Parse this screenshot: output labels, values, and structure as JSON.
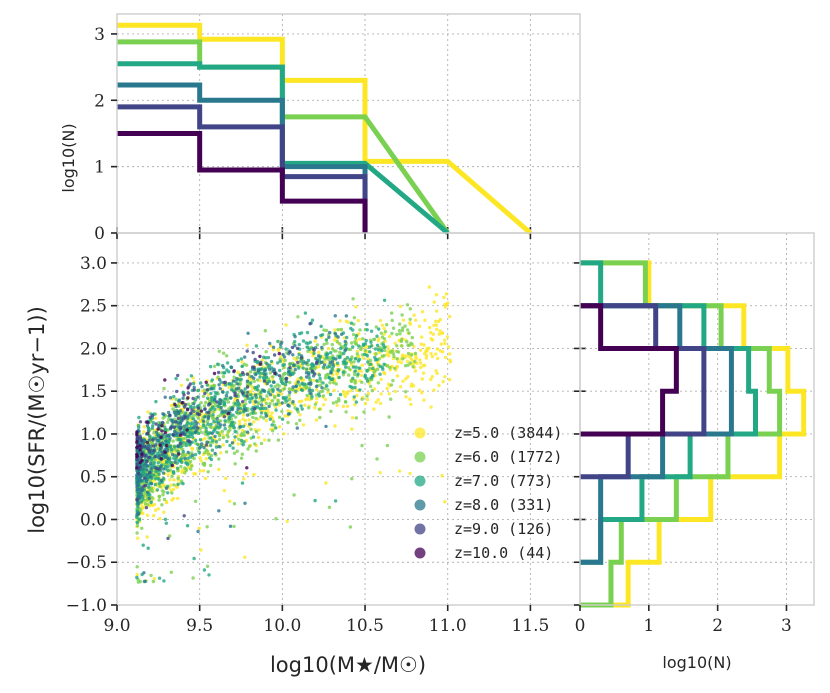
{
  "chart_data": {
    "type": "scatter",
    "title": "",
    "xlabel": "log10(M★/M☉)",
    "ylabel": "log10(SFR/(M☉yr−1))",
    "xlim": [
      9.0,
      11.8
    ],
    "ylim": [
      -1.0,
      3.35
    ],
    "x_ticks": [
      "9.0",
      "9.5",
      "10.0",
      "10.5",
      "11.0",
      "11.5"
    ],
    "y_ticks": [
      "−1.0",
      "−0.5",
      "0.0",
      "0.5",
      "1.0",
      "1.5",
      "2.0",
      "2.5",
      "3.0"
    ],
    "series": [
      {
        "name": "z=5.0 (3844)",
        "redshift": 5.0,
        "count": 3844,
        "color": "#fde725",
        "mass_hist": {
          "bins": [
            9.0,
            9.5,
            10.0,
            10.5,
            11.0,
            11.5
          ],
          "log10N": [
            3.13,
            2.92,
            2.3,
            1.08
          ]
        },
        "sfr_hist": {
          "bins": [
            -1.0,
            -0.5,
            0.0,
            0.5,
            1.0,
            1.5,
            2.0,
            2.5,
            3.0
          ],
          "log10N": [
            0.7,
            1.15,
            1.9,
            2.9,
            3.25,
            3.02,
            2.38,
            1.0
          ]
        }
      },
      {
        "name": "z=6.0 (1772)",
        "redshift": 6.0,
        "count": 1772,
        "color": "#7ad151",
        "mass_hist": {
          "bins": [
            9.0,
            9.5,
            10.0,
            10.5,
            11.0
          ],
          "log10N": [
            2.88,
            2.5,
            1.75
          ]
        },
        "sfr_hist": {
          "bins": [
            -1.0,
            -0.5,
            0.0,
            0.5,
            1.0,
            1.5,
            2.0,
            2.5,
            3.0
          ],
          "log10N": [
            0.45,
            0.6,
            1.4,
            2.15,
            2.9,
            2.75,
            2.05,
            0.95
          ]
        }
      },
      {
        "name": "z=7.0 (773)",
        "redshift": 7.0,
        "count": 773,
        "color": "#22a884",
        "mass_hist": {
          "bins": [
            9.0,
            9.5,
            10.0,
            10.5,
            11.0
          ],
          "log10N": [
            2.55,
            2.5,
            1.05
          ]
        },
        "sfr_hist": {
          "bins": [
            -0.5,
            0.0,
            0.5,
            1.0,
            1.5,
            2.0,
            2.5,
            3.0
          ],
          "log10N": [
            0.3,
            0.9,
            1.6,
            2.55,
            2.45,
            1.8,
            0.3
          ]
        }
      },
      {
        "name": "z=8.0 (331)",
        "redshift": 8.0,
        "count": 331,
        "color": "#2a788e",
        "mass_hist": {
          "bins": [
            9.0,
            9.5,
            10.0,
            10.5
          ],
          "log10N": [
            2.23,
            2.0,
            1.0
          ]
        },
        "sfr_hist": {
          "bins": [
            -0.5,
            0.0,
            0.5,
            1.0,
            1.5,
            2.0,
            2.5
          ],
          "log10N": [
            0.3,
            0.3,
            1.2,
            2.2,
            2.2,
            1.45
          ]
        }
      },
      {
        "name": "z=9.0 (126)",
        "redshift": 9.0,
        "count": 126,
        "color": "#414487",
        "mass_hist": {
          "bins": [
            9.0,
            9.5,
            10.0,
            10.5
          ],
          "log10N": [
            1.9,
            1.6,
            0.85
          ]
        },
        "sfr_hist": {
          "bins": [
            0.5,
            1.0,
            1.5,
            2.0,
            2.5
          ],
          "log10N": [
            0.7,
            1.8,
            1.8,
            1.1
          ]
        }
      },
      {
        "name": "z=10.0 (44)",
        "redshift": 10.0,
        "count": 44,
        "color": "#440154",
        "mass_hist": {
          "bins": [
            9.0,
            9.5,
            10.0,
            10.5
          ],
          "log10N": [
            1.5,
            0.95,
            0.48
          ]
        },
        "sfr_hist": {
          "bins": [
            1.0,
            1.5,
            2.0,
            2.5
          ],
          "log10N": [
            1.2,
            1.4,
            0.3
          ]
        }
      }
    ],
    "top_panel": {
      "ylabel": "log10(N)",
      "ylim": [
        0,
        3.3
      ],
      "y_ticks": [
        "0",
        "1",
        "2",
        "3"
      ]
    },
    "right_panel": {
      "xlabel": "log10(N)",
      "xlim": [
        0,
        3.4
      ],
      "x_ticks": [
        "0",
        "1",
        "2",
        "3"
      ]
    },
    "legend": {
      "placement": "lower-right",
      "entries": [
        "z=5.0 (3844)",
        "z=6.0 (1772)",
        "z=7.0 (773)",
        "z=8.0 (331)",
        "z=9.0 (126)",
        "z=10.0 (44)"
      ]
    },
    "grid": true
  }
}
